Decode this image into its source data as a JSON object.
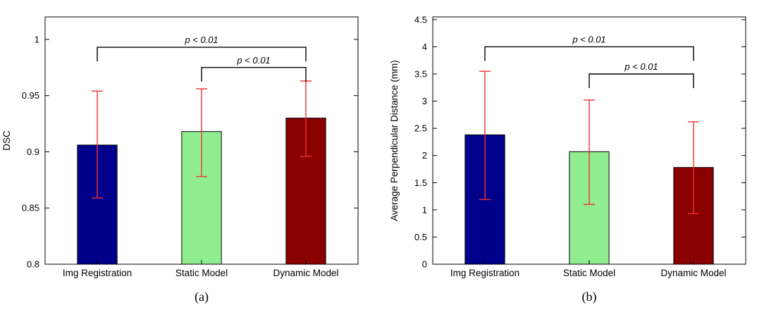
{
  "figure": {
    "background": "#ffffff",
    "panel_labels": [
      "(a)",
      "(b)"
    ]
  },
  "chart_data": [
    {
      "type": "bar",
      "panel_label": "(a)",
      "title": "",
      "xlabel": "",
      "ylabel": "DSC",
      "categories": [
        "Img Registration",
        "Static Model",
        "Dynamic Model"
      ],
      "values": [
        0.906,
        0.918,
        0.93
      ],
      "error_low": [
        0.859,
        0.878,
        0.896
      ],
      "error_high": [
        0.954,
        0.956,
        0.963
      ],
      "ylim": [
        0.8,
        1.02
      ],
      "ytick_values": [
        0.8,
        0.85,
        0.9,
        0.95,
        1
      ],
      "ytick_labels": [
        "0.8",
        "0.85",
        "0.9",
        "0.95",
        "1"
      ],
      "bar_colors": [
        "#00008b",
        "#90ee90",
        "#8b0000"
      ],
      "bar_edge_color": "#000000",
      "error_color": "#ee3333",
      "grid": false,
      "legend": false,
      "annotations": [
        {
          "label": "p < 0.01",
          "from_category": 0,
          "to_category": 2,
          "y": 0.993
        },
        {
          "label": "p < 0.01",
          "from_category": 1,
          "to_category": 2,
          "y": 0.975
        }
      ]
    },
    {
      "type": "bar",
      "panel_label": "(b)",
      "title": "",
      "xlabel": "",
      "ylabel": "Average Perpendicular Distance (mm)",
      "categories": [
        "Img Registration",
        "Static Model",
        "Dynamic Model"
      ],
      "values": [
        2.38,
        2.07,
        1.78
      ],
      "error_low": [
        1.19,
        1.1,
        0.93
      ],
      "error_high": [
        3.55,
        3.02,
        2.62
      ],
      "ylim": [
        0,
        4.55
      ],
      "ytick_values": [
        0,
        0.5,
        1,
        1.5,
        2,
        2.5,
        3,
        3.5,
        4,
        4.5
      ],
      "ytick_labels": [
        "0",
        "0.5",
        "1",
        "1.5",
        "2",
        "2.5",
        "3",
        "3.5",
        "4",
        "4.5"
      ],
      "bar_colors": [
        "#00008b",
        "#90ee90",
        "#8b0000"
      ],
      "bar_edge_color": "#000000",
      "error_color": "#ee3333",
      "grid": false,
      "legend": false,
      "annotations": [
        {
          "label": "p < 0.01",
          "from_category": 0,
          "to_category": 2,
          "y": 4.0
        },
        {
          "label": "p < 0.01",
          "from_category": 1,
          "to_category": 2,
          "y": 3.5
        }
      ]
    }
  ]
}
